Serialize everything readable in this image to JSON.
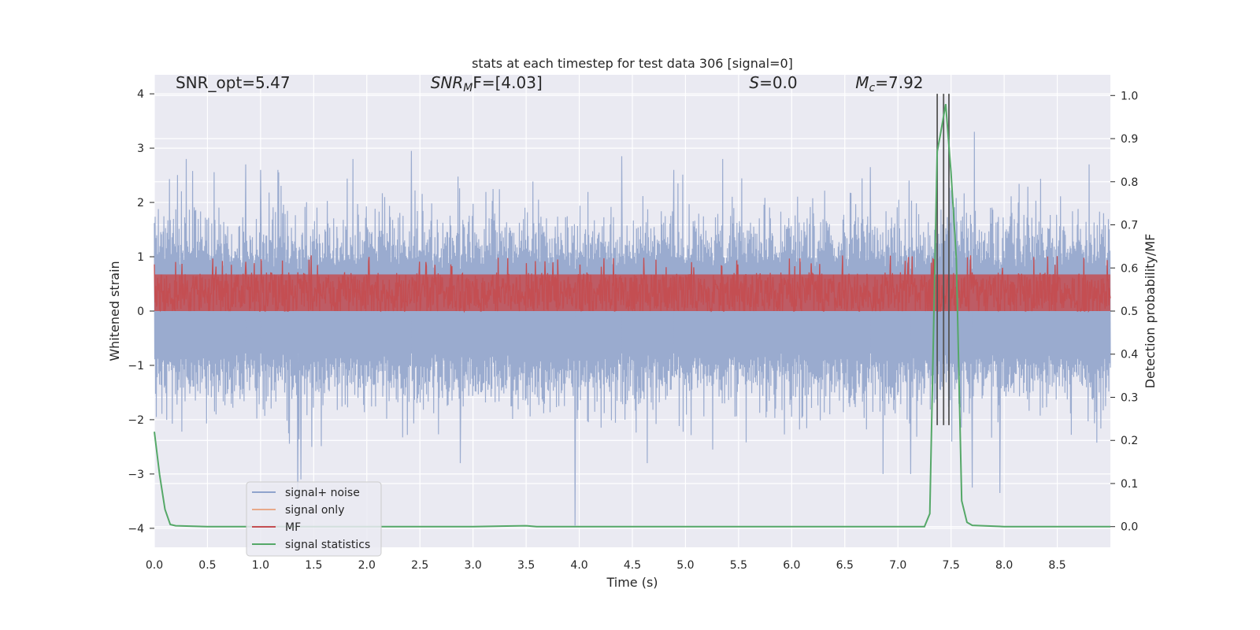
{
  "chart_data": {
    "type": "line",
    "title": "stats at each timestep for test data 306 [signal=0]",
    "xlabel": "Time (s)",
    "ylabel": "Whitened strain",
    "y2label": "Detection probability/MF",
    "xlim": [
      0.0,
      9.0
    ],
    "ylim": [
      -4.35,
      4.35
    ],
    "y2lim": [
      -0.048,
      1.048
    ],
    "x_ticks": [
      "0.0",
      "0.5",
      "1.0",
      "1.5",
      "2.0",
      "2.5",
      "3.0",
      "3.5",
      "4.0",
      "4.5",
      "5.0",
      "5.5",
      "6.0",
      "6.5",
      "7.0",
      "7.5",
      "8.0",
      "8.5"
    ],
    "x_tick_values": [
      0.0,
      0.5,
      1.0,
      1.5,
      2.0,
      2.5,
      3.0,
      3.5,
      4.0,
      4.5,
      5.0,
      5.5,
      6.0,
      6.5,
      7.0,
      7.5,
      8.0,
      8.5
    ],
    "y_ticks": [
      "4",
      "3",
      "2",
      "1",
      "0",
      "−1",
      "−2",
      "−3",
      "−4"
    ],
    "y_tick_values": [
      4,
      3,
      2,
      1,
      0,
      -1,
      -2,
      -3,
      -4
    ],
    "y2_ticks": [
      "1.0",
      "0.9",
      "0.8",
      "0.7",
      "0.6",
      "0.5",
      "0.4",
      "0.3",
      "0.2",
      "0.1",
      "0.0"
    ],
    "y2_tick_values": [
      1.0,
      0.9,
      0.8,
      0.7,
      0.6,
      0.5,
      0.4,
      0.3,
      0.2,
      0.1,
      0.0
    ],
    "grid": true,
    "legend_position": "lower-left",
    "colors": {
      "noise": "#4c72b0",
      "signal_only": "#dd8452",
      "mf": "#c44e52",
      "stats": "#55a868",
      "vlines": "#555555",
      "plot_bg": "#eaeaf2",
      "grid": "#ffffff"
    },
    "annotations": [
      {
        "text": "SNR_opt=5.47",
        "x": 0.2,
        "y": 4.1
      },
      {
        "main": "SNR",
        "sub": "M",
        "rest": "F=[4.03]",
        "x": 2.6,
        "y": 4.1
      },
      {
        "main": "S",
        "sub": "",
        "rest": "=0.0",
        "x": 5.6,
        "y": 4.1
      },
      {
        "main": "M",
        "sub": "c",
        "rest": "=7.92",
        "x": 6.6,
        "y": 4.1
      }
    ],
    "vertical_lines": {
      "x": [
        7.37,
        7.43,
        7.48
      ],
      "y_range": [
        -2.1,
        4.0
      ]
    },
    "series": [
      {
        "name": "signal+ noise",
        "kind": "noise",
        "band": [
          -0.78,
          0.78
        ],
        "typical_amplitude": 1.5,
        "spikes": [
          {
            "x": 0.3,
            "y": 2.8
          },
          {
            "x": 0.86,
            "y": 2.7
          },
          {
            "x": 1.35,
            "y": -3.4
          },
          {
            "x": 1.38,
            "y": -3.1
          },
          {
            "x": 1.87,
            "y": 2.8
          },
          {
            "x": 2.42,
            "y": 2.95
          },
          {
            "x": 3.96,
            "y": -3.95
          },
          {
            "x": 4.4,
            "y": 2.85
          },
          {
            "x": 4.89,
            "y": 2.6
          },
          {
            "x": 5.35,
            "y": 2.8
          },
          {
            "x": 6.74,
            "y": 2.65
          },
          {
            "x": 6.86,
            "y": -3.0
          },
          {
            "x": 7.12,
            "y": -3.0
          },
          {
            "x": 7.72,
            "y": 3.3
          },
          {
            "x": 7.7,
            "y": -3.25
          },
          {
            "x": 7.96,
            "y": -3.35
          },
          {
            "x": 8.8,
            "y": 2.7
          },
          {
            "x": 1.0,
            "y": 2.6
          },
          {
            "x": 2.88,
            "y": -2.8
          },
          {
            "x": 4.64,
            "y": -2.8
          }
        ]
      },
      {
        "name": "signal only",
        "kind": "signal_only",
        "values": []
      },
      {
        "name": "MF",
        "kind": "mf",
        "axis": "y2",
        "base_range": [
          0.5,
          0.6
        ],
        "max": 0.63
      },
      {
        "name": "signal statistics",
        "kind": "stats",
        "axis": "y2",
        "x": [
          0.0,
          0.05,
          0.1,
          0.15,
          0.2,
          0.5,
          1.0,
          2.0,
          3.0,
          3.5,
          3.6,
          4.0,
          5.0,
          6.0,
          7.0,
          7.25,
          7.3,
          7.37,
          7.4,
          7.45,
          7.5,
          7.55,
          7.6,
          7.65,
          7.7,
          8.0,
          8.5,
          9.0
        ],
        "values": [
          0.22,
          0.12,
          0.04,
          0.005,
          0.002,
          0.0,
          0.0,
          0.0,
          0.0,
          0.002,
          0.0,
          0.0,
          0.0,
          0.0,
          0.0,
          0.0,
          0.03,
          0.87,
          0.91,
          0.98,
          0.82,
          0.62,
          0.06,
          0.01,
          0.003,
          0.0,
          0.0,
          0.0
        ]
      }
    ]
  }
}
